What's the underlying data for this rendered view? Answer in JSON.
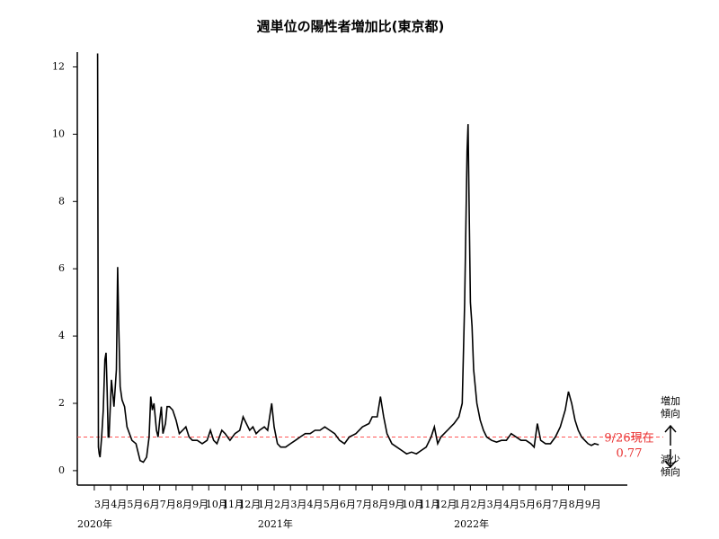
{
  "chart_data": {
    "type": "line",
    "title": "週単位の陽性者増加比(東京都)",
    "x": [
      3.2,
      3.25,
      3.3,
      3.35,
      3.45,
      3.55,
      3.65,
      3.72,
      3.78,
      3.85,
      3.9,
      4.05,
      4.2,
      4.35,
      4.43,
      4.5,
      4.58,
      4.7,
      4.85,
      5.0,
      5.3,
      5.55,
      5.8,
      6.0,
      6.2,
      6.35,
      6.45,
      6.55,
      6.65,
      6.8,
      6.9,
      7.0,
      7.1,
      7.2,
      7.35,
      7.45,
      7.6,
      7.8,
      8.0,
      8.2,
      8.4,
      8.6,
      8.8,
      9.0,
      9.3,
      9.6,
      9.9,
      10.1,
      10.3,
      10.5,
      10.8,
      11.0,
      11.3,
      11.6,
      11.9,
      12.1,
      12.3,
      12.5,
      12.7,
      12.9,
      13.1,
      13.4,
      13.6,
      13.85,
      14.0,
      14.2,
      14.4,
      14.7,
      15.0,
      15.3,
      15.6,
      15.9,
      16.2,
      16.5,
      16.8,
      17.1,
      17.4,
      17.7,
      18.0,
      18.3,
      18.6,
      19.0,
      19.4,
      19.8,
      20.0,
      20.3,
      20.5,
      20.7,
      20.9,
      21.2,
      21.5,
      21.8,
      22.1,
      22.4,
      22.7,
      23.0,
      23.3,
      23.6,
      23.8,
      24.0,
      24.2,
      24.4,
      24.6,
      24.8,
      25.0,
      25.3,
      25.5,
      25.65,
      25.8,
      25.86,
      25.92,
      26.0,
      26.1,
      26.2,
      26.4,
      26.6,
      26.8,
      27.0,
      27.3,
      27.6,
      27.9,
      28.2,
      28.5,
      28.8,
      29.1,
      29.4,
      29.7,
      29.9,
      30.1,
      30.3,
      30.6,
      30.9,
      31.2,
      31.5,
      31.8,
      32.0,
      32.2,
      32.4,
      32.6,
      32.8,
      33.0,
      33.2,
      33.4,
      33.6,
      33.85
    ],
    "series": [
      {
        "color": "#000000",
        "values": [
          12.4,
          0.7,
          0.5,
          0.4,
          1.0,
          1.8,
          3.3,
          3.5,
          2.5,
          1.0,
          1.0,
          2.7,
          1.9,
          3.0,
          6.05,
          4.2,
          2.5,
          2.1,
          1.9,
          1.3,
          0.9,
          0.8,
          0.3,
          0.25,
          0.4,
          1.0,
          2.2,
          1.8,
          2.0,
          1.2,
          1.0,
          1.5,
          1.9,
          1.1,
          1.4,
          1.9,
          1.9,
          1.8,
          1.5,
          1.1,
          1.2,
          1.3,
          1.0,
          0.9,
          0.9,
          0.8,
          0.9,
          1.2,
          0.9,
          0.8,
          1.2,
          1.1,
          0.9,
          1.1,
          1.2,
          1.6,
          1.4,
          1.2,
          1.3,
          1.1,
          1.2,
          1.3,
          1.2,
          2.0,
          1.3,
          0.8,
          0.7,
          0.7,
          0.8,
          0.9,
          1.0,
          1.1,
          1.1,
          1.2,
          1.2,
          1.3,
          1.2,
          1.1,
          0.9,
          0.8,
          1.0,
          1.1,
          1.3,
          1.4,
          1.6,
          1.6,
          2.2,
          1.6,
          1.1,
          0.8,
          0.7,
          0.6,
          0.5,
          0.55,
          0.5,
          0.6,
          0.7,
          1.0,
          1.3,
          0.8,
          1.0,
          1.1,
          1.2,
          1.3,
          1.4,
          1.6,
          2.0,
          5.0,
          9.5,
          10.3,
          8.0,
          5.0,
          4.3,
          3.0,
          2.0,
          1.5,
          1.2,
          1.0,
          0.9,
          0.85,
          0.9,
          0.9,
          1.1,
          1.0,
          0.9,
          0.9,
          0.8,
          0.7,
          1.4,
          0.9,
          0.8,
          0.8,
          1.0,
          1.3,
          1.8,
          2.35,
          2.0,
          1.5,
          1.2,
          1.0,
          0.9,
          0.8,
          0.75,
          0.8,
          0.77
        ]
      }
    ],
    "xlim": [
      1.96,
      35.6
    ],
    "ylim": [
      -0.43,
      12.44
    ],
    "yticks": [
      0,
      2,
      4,
      6,
      8,
      10,
      12
    ],
    "xticks": [
      {
        "value": 3,
        "label": "3月"
      },
      {
        "value": 4,
        "label": "4月"
      },
      {
        "value": 5,
        "label": "5月"
      },
      {
        "value": 6,
        "label": "6月"
      },
      {
        "value": 7,
        "label": "7月"
      },
      {
        "value": 8,
        "label": "8月"
      },
      {
        "value": 9,
        "label": "9月"
      },
      {
        "value": 10,
        "label": "10月"
      },
      {
        "value": 11,
        "label": "11月"
      },
      {
        "value": 12,
        "label": "12月"
      },
      {
        "value": 13,
        "label": "1月"
      },
      {
        "value": 14,
        "label": "2月"
      },
      {
        "value": 15,
        "label": "3月"
      },
      {
        "value": 16,
        "label": "4月"
      },
      {
        "value": 17,
        "label": "5月"
      },
      {
        "value": 18,
        "label": "6月"
      },
      {
        "value": 19,
        "label": "7月"
      },
      {
        "value": 20,
        "label": "8月"
      },
      {
        "value": 21,
        "label": "9月"
      },
      {
        "value": 22,
        "label": "10月"
      },
      {
        "value": 23,
        "label": "11月"
      },
      {
        "value": 24,
        "label": "12月"
      },
      {
        "value": 25,
        "label": "1月"
      },
      {
        "value": 26,
        "label": "2月"
      },
      {
        "value": 27,
        "label": "3月"
      },
      {
        "value": 28,
        "label": "4月"
      },
      {
        "value": 29,
        "label": "5月"
      },
      {
        "value": 30,
        "label": "6月"
      },
      {
        "value": 31,
        "label": "7月"
      },
      {
        "value": 32,
        "label": "8月"
      },
      {
        "value": 33,
        "label": "9月"
      }
    ],
    "year_ticks": [
      {
        "value": 1.96,
        "label": "2020年"
      },
      {
        "value": 13,
        "label": "2021年"
      },
      {
        "value": 25,
        "label": "2022年"
      }
    ],
    "reference_line": {
      "value": 1,
      "color": "#ff5555"
    },
    "annotations": {
      "current_date": "9/26現在",
      "current_value": "0.77",
      "up_1": "増加",
      "up_2": "傾向",
      "down_1": "減少",
      "down_2": "傾向"
    }
  }
}
